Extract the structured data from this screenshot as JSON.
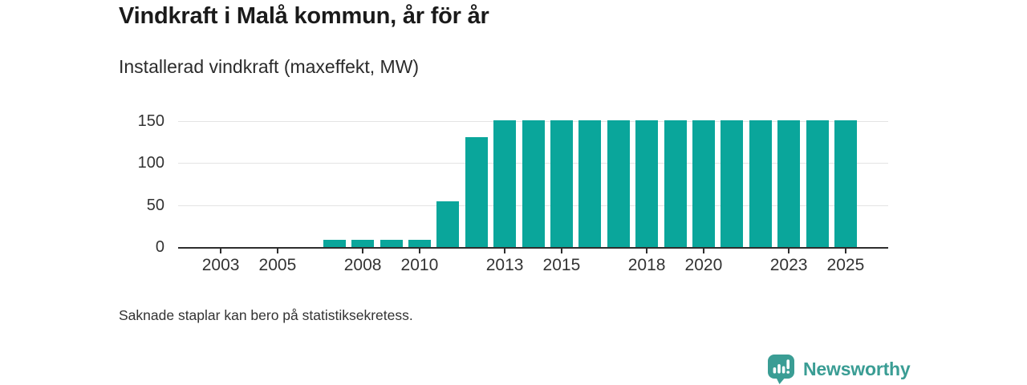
{
  "header": {
    "title": "Vindkraft i Malå kommun, år för år",
    "subtitle": "Installerad vindkraft (maxeffekt, MW)"
  },
  "footer": {
    "note": "Saknade staplar kan bero på statistiksekretess.",
    "brand": "Newsworthy"
  },
  "colors": {
    "bar": "#0aa69b",
    "axis": "#2e2e2e",
    "grid": "#e4e4e4",
    "title_text": "#1a1a1a",
    "body_text": "#333333",
    "brand": "#3a9d94"
  },
  "icons": {
    "logo": "newsworthy-speech-bubble-barchart-icon"
  },
  "chart_data": {
    "type": "bar",
    "title": "Vindkraft i Malå kommun, år för år",
    "subtitle": "Installerad vindkraft (maxeffekt, MW)",
    "xlabel": "",
    "ylabel": "Installerad vindkraft (maxeffekt, MW)",
    "categories": [
      2002,
      2003,
      2004,
      2005,
      2006,
      2007,
      2008,
      2009,
      2010,
      2011,
      2012,
      2013,
      2014,
      2015,
      2016,
      2017,
      2018,
      2019,
      2020,
      2021,
      2022,
      2023,
      2024,
      2025,
      2026
    ],
    "values": [
      null,
      null,
      null,
      null,
      null,
      10,
      10,
      10,
      10,
      55,
      132,
      152,
      152,
      152,
      152,
      152,
      152,
      152,
      152,
      152,
      152,
      152,
      152,
      152,
      null
    ],
    "xticks": [
      2003,
      2005,
      2008,
      2010,
      2013,
      2015,
      2018,
      2020,
      2023,
      2025
    ],
    "yticks": [
      0,
      50,
      100,
      150
    ],
    "ylim": [
      0,
      161.5
    ],
    "grid": "horizontal",
    "legend": "none",
    "bar_color": "#0aa69b"
  }
}
